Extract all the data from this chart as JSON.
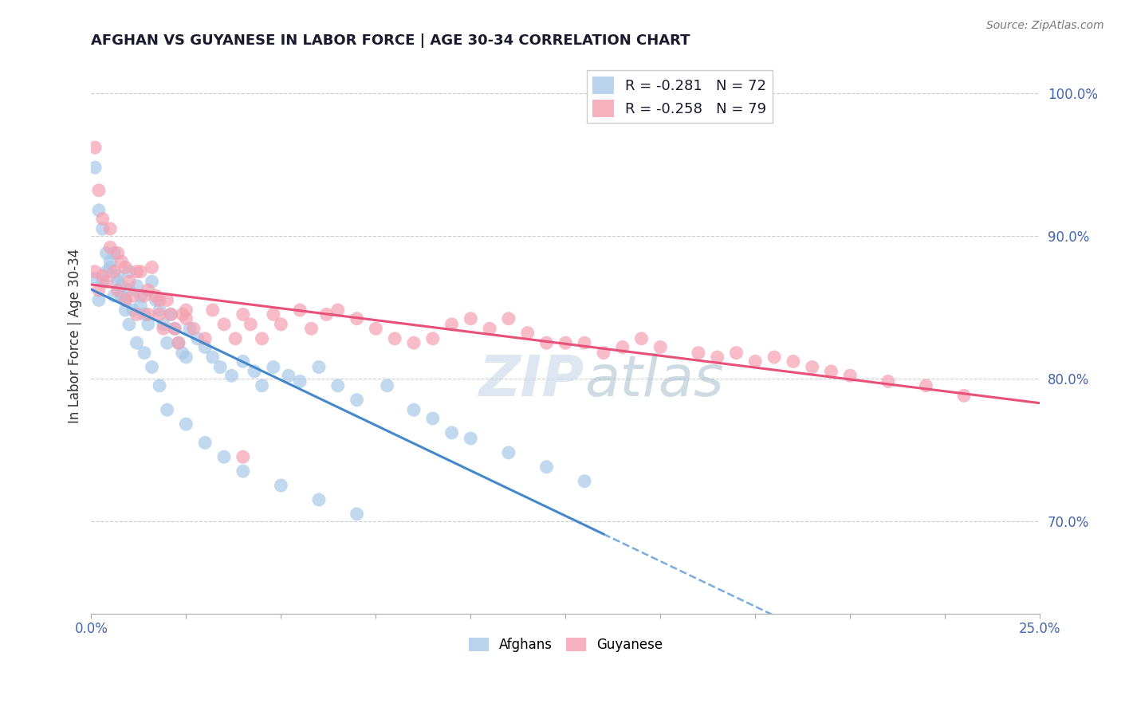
{
  "title": "AFGHAN VS GUYANESE IN LABOR FORCE | AGE 30-34 CORRELATION CHART",
  "source_text": "Source: ZipAtlas.com",
  "ylabel": "In Labor Force | Age 30-34",
  "xlim": [
    0.0,
    0.25
  ],
  "ylim": [
    0.635,
    1.025
  ],
  "xticks": [
    0.0,
    0.025,
    0.05,
    0.075,
    0.1,
    0.125,
    0.15,
    0.175,
    0.2,
    0.225,
    0.25
  ],
  "xticklabels_show": {
    "0.0": "0.0%",
    "0.25": "25.0%"
  },
  "yticks": [
    0.7,
    0.8,
    0.9,
    1.0
  ],
  "yticklabels": [
    "70.0%",
    "80.0%",
    "90.0%",
    "100.0%"
  ],
  "legend_r": [
    -0.281,
    -0.258
  ],
  "legend_n": [
    72,
    79
  ],
  "blue_color": "#a8c8e8",
  "pink_color": "#f4a0b0",
  "blue_line_color": "#4488cc",
  "pink_line_color": "#e8507a",
  "background_color": "#ffffff",
  "grid_color": "#cccccc",
  "watermark_color": "#c8d8e8",
  "tick_label_color": "#4466aa",
  "title_fontsize": 13,
  "afghans_x": [
    0.001,
    0.002,
    0.003,
    0.004,
    0.005,
    0.006,
    0.007,
    0.008,
    0.009,
    0.01,
    0.01,
    0.011,
    0.012,
    0.013,
    0.013,
    0.014,
    0.015,
    0.016,
    0.017,
    0.018,
    0.019,
    0.02,
    0.021,
    0.022,
    0.023,
    0.024,
    0.025,
    0.026,
    0.028,
    0.03,
    0.032,
    0.034,
    0.037,
    0.04,
    0.043,
    0.045,
    0.048,
    0.052,
    0.055,
    0.06,
    0.065,
    0.07,
    0.078,
    0.085,
    0.09,
    0.095,
    0.1,
    0.11,
    0.12,
    0.13,
    0.001,
    0.002,
    0.003,
    0.004,
    0.005,
    0.006,
    0.007,
    0.008,
    0.009,
    0.01,
    0.012,
    0.014,
    0.016,
    0.018,
    0.02,
    0.025,
    0.03,
    0.035,
    0.04,
    0.05,
    0.06,
    0.07
  ],
  "afghans_y": [
    0.87,
    0.855,
    0.868,
    0.875,
    0.882,
    0.858,
    0.872,
    0.865,
    0.855,
    0.862,
    0.875,
    0.848,
    0.865,
    0.858,
    0.851,
    0.845,
    0.838,
    0.868,
    0.855,
    0.848,
    0.838,
    0.825,
    0.845,
    0.835,
    0.825,
    0.818,
    0.815,
    0.835,
    0.828,
    0.822,
    0.815,
    0.808,
    0.802,
    0.812,
    0.805,
    0.795,
    0.808,
    0.802,
    0.798,
    0.808,
    0.795,
    0.785,
    0.795,
    0.778,
    0.772,
    0.762,
    0.758,
    0.748,
    0.738,
    0.728,
    0.948,
    0.918,
    0.905,
    0.888,
    0.878,
    0.888,
    0.868,
    0.858,
    0.848,
    0.838,
    0.825,
    0.818,
    0.808,
    0.795,
    0.778,
    0.768,
    0.755,
    0.745,
    0.735,
    0.725,
    0.715,
    0.705
  ],
  "guyanese_x": [
    0.001,
    0.002,
    0.003,
    0.004,
    0.005,
    0.006,
    0.007,
    0.008,
    0.009,
    0.01,
    0.011,
    0.012,
    0.013,
    0.014,
    0.015,
    0.016,
    0.017,
    0.018,
    0.019,
    0.02,
    0.021,
    0.022,
    0.023,
    0.024,
    0.025,
    0.027,
    0.03,
    0.032,
    0.035,
    0.038,
    0.04,
    0.042,
    0.045,
    0.048,
    0.05,
    0.055,
    0.058,
    0.062,
    0.065,
    0.07,
    0.075,
    0.08,
    0.085,
    0.09,
    0.095,
    0.1,
    0.105,
    0.11,
    0.115,
    0.12,
    0.125,
    0.13,
    0.135,
    0.14,
    0.145,
    0.15,
    0.16,
    0.165,
    0.17,
    0.175,
    0.18,
    0.185,
    0.19,
    0.195,
    0.2,
    0.21,
    0.22,
    0.23,
    0.001,
    0.002,
    0.003,
    0.005,
    0.007,
    0.009,
    0.012,
    0.015,
    0.018,
    0.025,
    0.04
  ],
  "guyanese_y": [
    0.875,
    0.862,
    0.872,
    0.868,
    0.892,
    0.875,
    0.862,
    0.882,
    0.855,
    0.868,
    0.858,
    0.845,
    0.875,
    0.858,
    0.845,
    0.878,
    0.858,
    0.845,
    0.835,
    0.855,
    0.845,
    0.835,
    0.825,
    0.845,
    0.842,
    0.835,
    0.828,
    0.848,
    0.838,
    0.828,
    0.845,
    0.838,
    0.828,
    0.845,
    0.838,
    0.848,
    0.835,
    0.845,
    0.848,
    0.842,
    0.835,
    0.828,
    0.825,
    0.828,
    0.838,
    0.842,
    0.835,
    0.842,
    0.832,
    0.825,
    0.825,
    0.825,
    0.818,
    0.822,
    0.828,
    0.822,
    0.818,
    0.815,
    0.818,
    0.812,
    0.815,
    0.812,
    0.808,
    0.805,
    0.802,
    0.798,
    0.795,
    0.788,
    0.962,
    0.932,
    0.912,
    0.905,
    0.888,
    0.878,
    0.875,
    0.862,
    0.855,
    0.848,
    0.745
  ]
}
